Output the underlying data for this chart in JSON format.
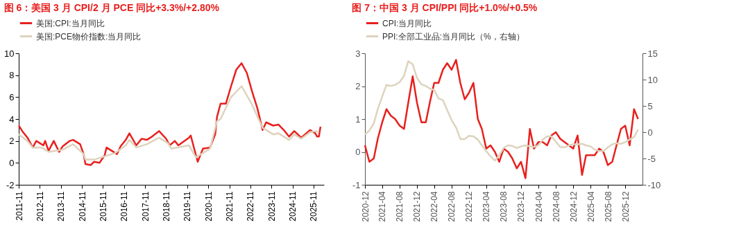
{
  "chart_data": [
    {
      "type": "line",
      "title": "图 6：美国 3 月 CPI/2 月 PCE 同比+3.3%/+2.80%",
      "legend": "top",
      "grid": false,
      "marker": "none",
      "line_style": "solid",
      "xlim": [
        "2011-11",
        "2026-05"
      ],
      "xticks": [
        "2011-11",
        "2012-11",
        "2013-11",
        "2014-11",
        "2015-11",
        "2016-11",
        "2017-11",
        "2018-11",
        "2019-11",
        "2020-11",
        "2021-11",
        "2022-11",
        "2023-11",
        "2024-11",
        "2025-11"
      ],
      "ylim": [
        -2,
        10
      ],
      "yticks": [
        -2,
        0,
        2,
        4,
        6,
        8,
        10
      ],
      "series": [
        {
          "name": "美国:CPI:当月同比",
          "color": "#e8201e",
          "x": [
            "2011-11",
            "2012-01",
            "2012-04",
            "2012-07",
            "2012-09",
            "2012-11",
            "2013-01",
            "2013-02",
            "2013-04",
            "2013-07",
            "2013-10",
            "2013-12",
            "2014-04",
            "2014-06",
            "2014-10",
            "2014-12",
            "2015-01",
            "2015-04",
            "2015-06",
            "2015-09",
            "2015-12",
            "2016-01",
            "2016-04",
            "2016-07",
            "2016-09",
            "2016-12",
            "2017-02",
            "2017-06",
            "2017-09",
            "2017-12",
            "2018-03",
            "2018-07",
            "2018-11",
            "2019-01",
            "2019-04",
            "2019-06",
            "2019-12",
            "2020-01",
            "2020-05",
            "2020-08",
            "2020-12",
            "2021-03",
            "2021-04",
            "2021-06",
            "2021-09",
            "2021-12",
            "2022-03",
            "2022-06",
            "2022-09",
            "2022-12",
            "2023-03",
            "2023-06",
            "2023-08",
            "2023-12",
            "2024-03",
            "2024-06",
            "2024-09",
            "2024-12",
            "2025-04",
            "2025-09",
            "2025-12",
            "2026-01",
            "2026-02",
            "2026-03"
          ],
          "values": [
            3.4,
            2.9,
            2.3,
            1.4,
            2.0,
            1.8,
            1.6,
            2.0,
            1.1,
            2.0,
            1.0,
            1.5,
            2.0,
            2.1,
            1.7,
            0.8,
            -0.1,
            -0.2,
            0.1,
            0.0,
            0.7,
            1.4,
            1.1,
            0.8,
            1.5,
            2.1,
            2.7,
            1.6,
            2.2,
            2.1,
            2.4,
            2.9,
            2.2,
            1.6,
            2.0,
            1.6,
            2.3,
            2.5,
            0.1,
            1.3,
            1.4,
            2.6,
            4.2,
            5.4,
            5.4,
            7.0,
            8.5,
            9.1,
            8.2,
            6.5,
            5.0,
            3.0,
            3.7,
            3.4,
            3.5,
            3.0,
            2.4,
            2.9,
            2.3,
            3.0,
            2.7,
            2.4,
            2.4,
            3.3
          ]
        },
        {
          "name": "美国:PCE物价指数:当月同比",
          "color": "#ddd3bd",
          "x": [
            "2011-11",
            "2012-04",
            "2012-07",
            "2012-12",
            "2013-04",
            "2013-12",
            "2014-06",
            "2014-12",
            "2015-01",
            "2015-06",
            "2015-12",
            "2016-06",
            "2016-12",
            "2017-02",
            "2017-06",
            "2017-12",
            "2018-07",
            "2018-12",
            "2019-02",
            "2019-12",
            "2020-04",
            "2020-12",
            "2021-04",
            "2021-06",
            "2021-12",
            "2022-06",
            "2022-12",
            "2023-06",
            "2023-12",
            "2024-03",
            "2024-09",
            "2024-12",
            "2025-04",
            "2025-09",
            "2025-12",
            "2026-02"
          ],
          "values": [
            2.6,
            2.0,
            1.4,
            1.4,
            1.0,
            1.2,
            1.7,
            0.8,
            0.3,
            0.3,
            0.6,
            0.9,
            1.6,
            2.1,
            1.4,
            1.7,
            2.3,
            1.8,
            1.3,
            1.6,
            0.5,
            1.3,
            3.8,
            4.0,
            6.0,
            7.0,
            5.3,
            3.2,
            2.6,
            2.7,
            2.1,
            2.6,
            2.2,
            2.8,
            2.9,
            2.8
          ]
        }
      ]
    },
    {
      "type": "line",
      "title": "图 7：中国 3 月 CPI/PPI 同比+1.0%/+0.5%",
      "legend": "top",
      "grid": false,
      "marker": "none",
      "line_style": "solid",
      "xlim": [
        "2020-12",
        "2026-04"
      ],
      "xticks": [
        "2020-12",
        "2021-04",
        "2021-08",
        "2021-12",
        "2022-04",
        "2022-08",
        "2022-12",
        "2023-04",
        "2023-08",
        "2023-12",
        "2024-04",
        "2024-08",
        "2024-12",
        "2025-04",
        "2025-08",
        "2025-12"
      ],
      "ylim": [
        -1,
        3
      ],
      "yticks": [
        -1,
        0,
        1,
        2,
        3
      ],
      "y2lim": [
        -10,
        15
      ],
      "y2ticks": [
        -10,
        -5,
        0,
        5,
        10,
        15
      ],
      "x": [
        "2020-12",
        "2021-01",
        "2021-02",
        "2021-03",
        "2021-04",
        "2021-05",
        "2021-06",
        "2021-07",
        "2021-08",
        "2021-09",
        "2021-10",
        "2021-11",
        "2021-12",
        "2022-01",
        "2022-02",
        "2022-03",
        "2022-04",
        "2022-05",
        "2022-06",
        "2022-07",
        "2022-08",
        "2022-09",
        "2022-10",
        "2022-11",
        "2022-12",
        "2023-01",
        "2023-02",
        "2023-03",
        "2023-04",
        "2023-05",
        "2023-06",
        "2023-07",
        "2023-08",
        "2023-09",
        "2023-10",
        "2023-11",
        "2023-12",
        "2024-01",
        "2024-02",
        "2024-03",
        "2024-04",
        "2024-05",
        "2024-06",
        "2024-07",
        "2024-08",
        "2024-09",
        "2024-10",
        "2024-11",
        "2024-12",
        "2025-01",
        "2025-02",
        "2025-03",
        "2025-04",
        "2025-05",
        "2025-06",
        "2025-07",
        "2025-08",
        "2025-09",
        "2025-10",
        "2025-11",
        "2025-12",
        "2026-01",
        "2026-02",
        "2026-03"
      ],
      "series": [
        {
          "name": "CPI:当月同比",
          "color": "#e8201e",
          "values": [
            0.2,
            -0.3,
            -0.2,
            0.4,
            0.9,
            1.3,
            1.1,
            1.0,
            0.8,
            0.7,
            1.5,
            2.3,
            1.5,
            0.9,
            0.9,
            1.5,
            2.1,
            2.1,
            2.5,
            2.7,
            2.5,
            2.8,
            2.1,
            1.6,
            1.8,
            2.1,
            1.0,
            0.7,
            0.1,
            0.2,
            0.0,
            -0.3,
            0.1,
            0.0,
            -0.2,
            -0.5,
            -0.3,
            -0.8,
            0.7,
            0.1,
            0.3,
            0.3,
            0.2,
            0.5,
            0.6,
            0.4,
            0.3,
            0.2,
            0.1,
            0.5,
            -0.7,
            -0.1,
            -0.1,
            -0.1,
            0.1,
            0.0,
            -0.4,
            -0.3,
            0.2,
            0.7,
            0.8,
            0.2,
            1.3,
            1.0
          ]
        },
        {
          "name": "PPI:全部工业品:当月同比（%，右轴）",
          "color": "#ddd3bd",
          "axis": "y2",
          "values": [
            -0.4,
            0.3,
            1.7,
            4.4,
            6.8,
            9.0,
            8.8,
            9.0,
            9.5,
            10.7,
            13.5,
            12.9,
            10.3,
            9.1,
            8.8,
            8.3,
            8.0,
            6.4,
            6.1,
            4.2,
            2.3,
            0.9,
            -1.3,
            -1.3,
            -0.7,
            -0.8,
            -1.4,
            -2.5,
            -3.6,
            -4.6,
            -5.4,
            -4.4,
            -3.0,
            -2.5,
            -2.6,
            -3.0,
            -2.7,
            -2.5,
            -2.7,
            -2.8,
            -2.5,
            -1.4,
            -0.8,
            -0.8,
            -1.8,
            -2.8,
            -2.9,
            -2.5,
            -2.3,
            -2.3,
            -2.2,
            -2.5,
            -2.7,
            -3.3,
            -3.6,
            -3.6,
            -2.9,
            -2.3,
            -2.1,
            -2.2,
            -1.9,
            -1.4,
            -0.9,
            0.5
          ]
        }
      ]
    }
  ]
}
